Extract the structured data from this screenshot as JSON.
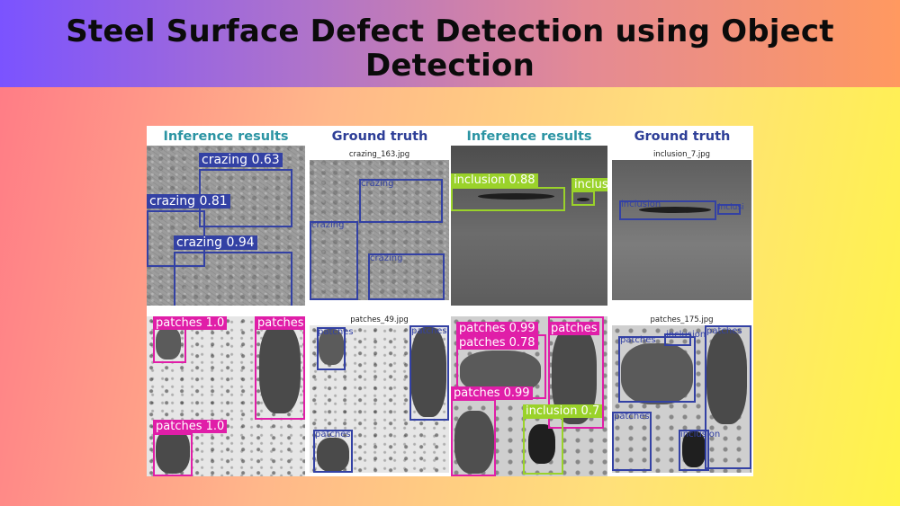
{
  "title": "Steel Surface Defect Detection using Object Detection",
  "headers": {
    "col1": "Inference results",
    "col2": "Ground truth",
    "col3": "Inference results",
    "col4": "Ground truth"
  },
  "filenames": {
    "crazing": "crazing_163.jpg",
    "inclusion": "inclusion_7.jpg",
    "patches1": "patches_49.jpg",
    "patches2": "patches_175.jpg"
  },
  "inference_crazing": [
    {
      "label": "crazing 0.63"
    },
    {
      "label": "crazing 0.81"
    },
    {
      "label": "crazing 0.94"
    }
  ],
  "truth_crazing": [
    "crazing",
    "crazing",
    "crazing"
  ],
  "inference_inclusion": [
    {
      "label": "inclusion 0.88"
    },
    {
      "label": "inclus"
    }
  ],
  "truth_inclusion": [
    "inclusion",
    "inclusi"
  ],
  "inference_patches1": [
    {
      "label": "patches 1.0"
    },
    {
      "label": "patches"
    },
    {
      "label": "patches 1.0"
    }
  ],
  "truth_patches1": [
    "patches",
    "patches",
    "patches"
  ],
  "inference_patches2": [
    {
      "label": "patches 0.99"
    },
    {
      "label": "patches 0.78"
    },
    {
      "label": "patches"
    },
    {
      "label": "patches 0.99"
    },
    {
      "label": "inclusion 0.7"
    }
  ],
  "truth_patches2": [
    "patches",
    "inclusion",
    "patches",
    "patches",
    "inclusion"
  ],
  "colors": {
    "crazing": "#3341a4",
    "patches": "#e01ea8",
    "inclusion": "#9ad22a",
    "ground_truth": "#3341a4"
  }
}
